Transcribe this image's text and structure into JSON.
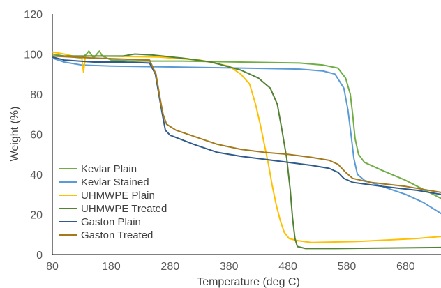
{
  "chart_data": {
    "type": "line",
    "title": "",
    "xlabel": "Temperature (deg C)",
    "ylabel": "Weight (%)",
    "xlim": [
      80,
      740
    ],
    "ylim": [
      0,
      120
    ],
    "xticks": [
      80,
      180,
      280,
      380,
      480,
      580,
      680
    ],
    "yticks": [
      0,
      20,
      40,
      60,
      80,
      100,
      120
    ],
    "grid": false,
    "legend_position": "bottom-left",
    "series": [
      {
        "name": "Kevlar Plain",
        "color": "#70ad47",
        "points": [
          [
            80,
            100
          ],
          [
            100,
            99
          ],
          [
            130,
            98
          ],
          [
            138,
            100
          ],
          [
            142,
            101.5
          ],
          [
            150,
            98
          ],
          [
            160,
            101.5
          ],
          [
            165,
            99
          ],
          [
            180,
            97
          ],
          [
            220,
            96.5
          ],
          [
            300,
            96.5
          ],
          [
            400,
            96
          ],
          [
            500,
            95.5
          ],
          [
            540,
            94.5
          ],
          [
            565,
            93
          ],
          [
            578,
            88
          ],
          [
            586,
            80
          ],
          [
            590,
            70
          ],
          [
            594,
            58
          ],
          [
            600,
            50
          ],
          [
            610,
            46
          ],
          [
            640,
            42
          ],
          [
            680,
            37
          ],
          [
            700,
            34
          ],
          [
            720,
            31
          ],
          [
            740,
            28
          ]
        ]
      },
      {
        "name": "Kevlar Stained",
        "color": "#5b9bd5",
        "points": [
          [
            80,
            98
          ],
          [
            100,
            96
          ],
          [
            130,
            94.5
          ],
          [
            180,
            94
          ],
          [
            300,
            93.5
          ],
          [
            400,
            93
          ],
          [
            500,
            92.5
          ],
          [
            540,
            91.5
          ],
          [
            560,
            90
          ],
          [
            575,
            83
          ],
          [
            582,
            72
          ],
          [
            588,
            58
          ],
          [
            592,
            48
          ],
          [
            598,
            40
          ],
          [
            610,
            37
          ],
          [
            640,
            34
          ],
          [
            680,
            30
          ],
          [
            710,
            26
          ],
          [
            740,
            20.5
          ]
        ]
      },
      {
        "name": "UHMWPE Plain",
        "color": "#ffc000",
        "points": [
          [
            80,
            101
          ],
          [
            100,
            100
          ],
          [
            130,
            98
          ],
          [
            133,
            91
          ],
          [
            136,
            99
          ],
          [
            160,
            99
          ],
          [
            260,
            98.5
          ],
          [
            330,
            97
          ],
          [
            380,
            94
          ],
          [
            400,
            90
          ],
          [
            415,
            85
          ],
          [
            425,
            75
          ],
          [
            433,
            65
          ],
          [
            440,
            55
          ],
          [
            447,
            45
          ],
          [
            453,
            35
          ],
          [
            460,
            25
          ],
          [
            467,
            17
          ],
          [
            474,
            11
          ],
          [
            482,
            8
          ],
          [
            495,
            7
          ],
          [
            520,
            6
          ],
          [
            600,
            6.5
          ],
          [
            700,
            8
          ],
          [
            740,
            9
          ]
        ]
      },
      {
        "name": "UHMWPE Treated",
        "color": "#548235",
        "points": [
          [
            80,
            99
          ],
          [
            150,
            99
          ],
          [
            200,
            99
          ],
          [
            220,
            100
          ],
          [
            250,
            99.5
          ],
          [
            300,
            98
          ],
          [
            350,
            96
          ],
          [
            400,
            92
          ],
          [
            430,
            88
          ],
          [
            450,
            83
          ],
          [
            462,
            75
          ],
          [
            470,
            62
          ],
          [
            478,
            48
          ],
          [
            484,
            32
          ],
          [
            488,
            18
          ],
          [
            492,
            8
          ],
          [
            496,
            4
          ],
          [
            510,
            3
          ],
          [
            560,
            3
          ],
          [
            740,
            3.5
          ]
        ]
      },
      {
        "name": "Gaston Plain",
        "color": "#2e5a8c",
        "points": [
          [
            80,
            98.5
          ],
          [
            100,
            97
          ],
          [
            150,
            96
          ],
          [
            200,
            96
          ],
          [
            245,
            95.5
          ],
          [
            255,
            90
          ],
          [
            262,
            78
          ],
          [
            268,
            68
          ],
          [
            272,
            62
          ],
          [
            280,
            59.5
          ],
          [
            320,
            55
          ],
          [
            360,
            51
          ],
          [
            400,
            49
          ],
          [
            440,
            47.5
          ],
          [
            480,
            46
          ],
          [
            520,
            44.5
          ],
          [
            550,
            43
          ],
          [
            565,
            41
          ],
          [
            575,
            38
          ],
          [
            590,
            36
          ],
          [
            640,
            34
          ],
          [
            700,
            32
          ],
          [
            740,
            30
          ]
        ]
      },
      {
        "name": "Gaston Treated",
        "color": "#a47a1e",
        "points": [
          [
            80,
            99
          ],
          [
            150,
            98
          ],
          [
            200,
            97.5
          ],
          [
            245,
            97
          ],
          [
            256,
            90
          ],
          [
            263,
            78
          ],
          [
            268,
            70
          ],
          [
            274,
            65
          ],
          [
            290,
            62
          ],
          [
            330,
            58
          ],
          [
            360,
            55
          ],
          [
            400,
            52.5
          ],
          [
            440,
            51
          ],
          [
            480,
            50
          ],
          [
            520,
            48.5
          ],
          [
            550,
            47
          ],
          [
            565,
            45
          ],
          [
            578,
            41
          ],
          [
            590,
            38
          ],
          [
            620,
            36
          ],
          [
            680,
            34
          ],
          [
            740,
            31
          ]
        ]
      }
    ]
  }
}
